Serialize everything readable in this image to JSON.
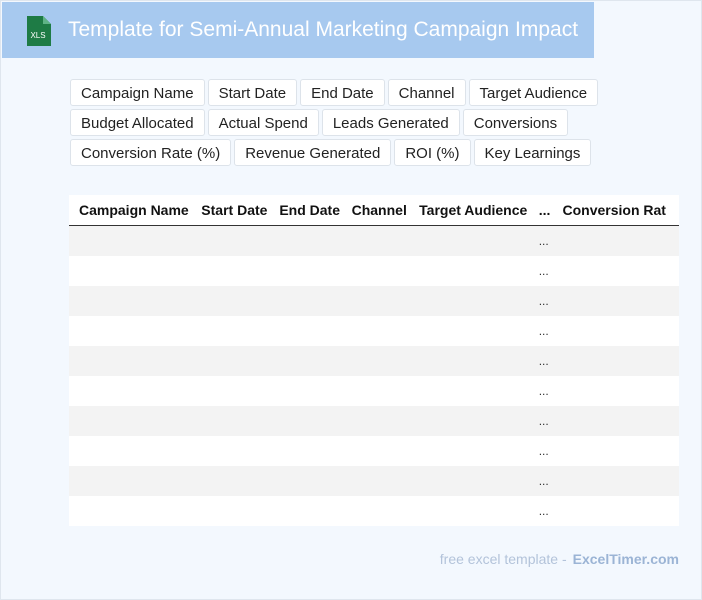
{
  "header": {
    "title": "Template for Semi-Annual Marketing Campaign Impact",
    "icon": "excel-file-icon",
    "icon_label": "XLS",
    "colors": {
      "bar": "#a7c9ef",
      "icon": "#1e7b45"
    }
  },
  "fields": [
    [
      "Campaign Name",
      "Start Date",
      "End Date",
      "Channel",
      "Target Audience"
    ],
    [
      "Budget Allocated",
      "Actual Spend",
      "Leads Generated",
      "Conversions"
    ],
    [
      "Conversion Rate (%)",
      "Revenue Generated",
      "ROI (%)",
      "Key Learnings"
    ]
  ],
  "table": {
    "columns": [
      "Campaign Name",
      "Start Date",
      "End Date",
      "Channel",
      "Target Audience",
      "...",
      "Conversion Rat"
    ],
    "rows": [
      [
        "",
        "",
        "",
        "",
        "",
        "...",
        ""
      ],
      [
        "",
        "",
        "",
        "",
        "",
        "...",
        ""
      ],
      [
        "",
        "",
        "",
        "",
        "",
        "...",
        ""
      ],
      [
        "",
        "",
        "",
        "",
        "",
        "...",
        ""
      ],
      [
        "",
        "",
        "",
        "",
        "",
        "...",
        ""
      ],
      [
        "",
        "",
        "",
        "",
        "",
        "...",
        ""
      ],
      [
        "",
        "",
        "",
        "",
        "",
        "...",
        ""
      ],
      [
        "",
        "",
        "",
        "",
        "",
        "...",
        ""
      ],
      [
        "",
        "",
        "",
        "",
        "",
        "...",
        ""
      ],
      [
        "",
        "",
        "",
        "",
        "",
        "...",
        ""
      ]
    ]
  },
  "footer": {
    "prefix": "free excel template -",
    "brand": "ExcelTimer.com"
  }
}
